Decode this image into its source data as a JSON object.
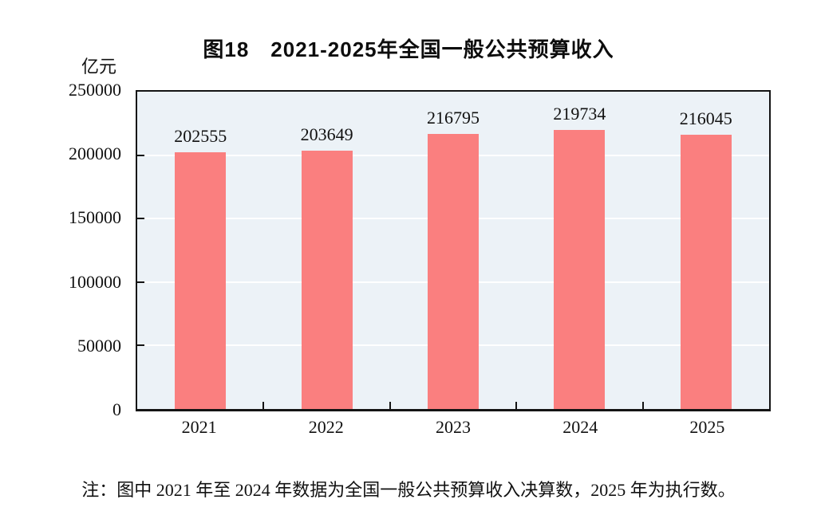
{
  "title": "图18　2021-2025年全国一般公共预算收入",
  "unit_label": "亿元",
  "note": "注：图中 2021 年至 2024 年数据为全国一般公共预算收入决算数，2025 年为执行数。",
  "colors": {
    "bar": "#FA7F7F",
    "plot_background": "#ECF2F7",
    "gridline": "#FFFFFF",
    "axis": "#141414",
    "text": "#111111"
  },
  "chart_data": {
    "type": "bar",
    "categories": [
      "2021",
      "2022",
      "2023",
      "2024",
      "2025"
    ],
    "values": [
      202555,
      203649,
      216795,
      219734,
      216045
    ],
    "title": "图18　2021-2025年全国一般公共预算收入",
    "xlabel": "",
    "ylabel": "亿元",
    "ylim": [
      0,
      250000
    ],
    "yticks": [
      0,
      50000,
      100000,
      150000,
      200000,
      250000
    ],
    "grid": true,
    "legend": "none",
    "data_labels": "above-bars"
  }
}
